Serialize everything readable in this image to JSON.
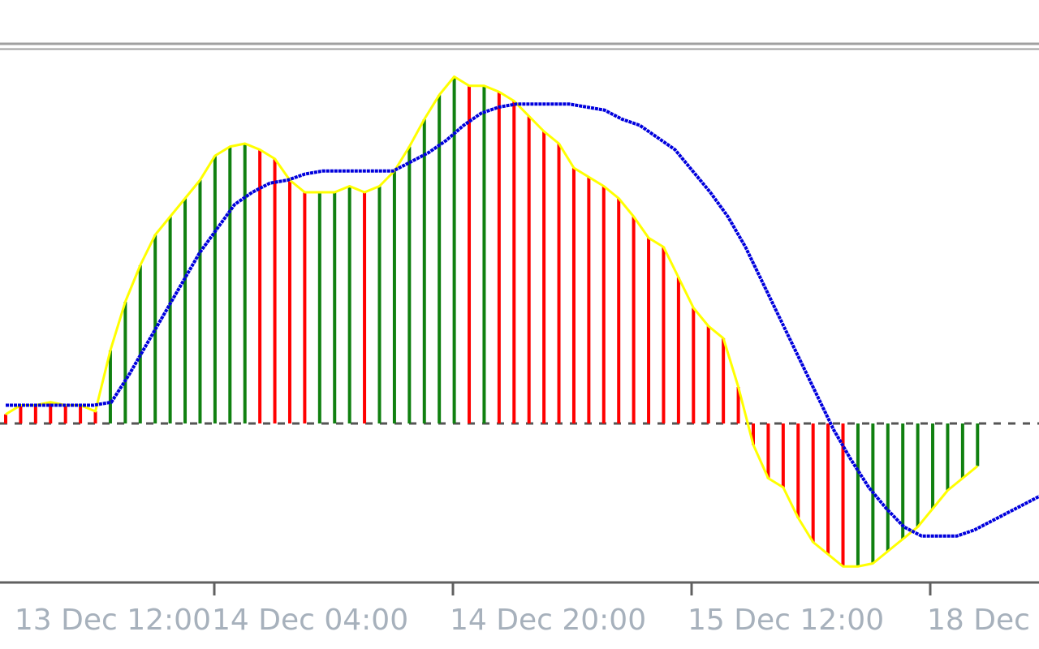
{
  "chart_data": {
    "type": "bar",
    "colors": {
      "up_bar": "#108010",
      "down_bar": "#ff0000",
      "envelope_line": "#ffff00",
      "signal_line": "#0000dd",
      "zero_line": "#555555",
      "frame": "#a0a0a0",
      "tick_label": "#a7b1bc"
    },
    "ylim": [
      -5.8,
      12.8
    ],
    "x_tick_labels": [
      "13 Dec 12:00",
      "14 Dec 04:00",
      "14 Dec 20:00",
      "15 Dec 12:00",
      "18 Dec"
    ],
    "x_tick_bar_index": [
      6,
      14,
      22,
      30,
      38
    ],
    "bar_values": [
      0.3,
      0.6,
      0.6,
      0.7,
      0.6,
      0.6,
      0.4,
      2.4,
      4.0,
      5.2,
      6.2,
      6.8,
      7.4,
      8.0,
      8.8,
      9.1,
      9.2,
      9.0,
      8.7,
      8.0,
      7.6,
      7.6,
      7.6,
      7.8,
      7.6,
      7.8,
      8.3,
      9.1,
      10.0,
      10.8,
      11.4,
      11.1,
      11.1,
      10.9,
      10.6,
      10.1,
      9.6,
      9.2,
      8.4,
      8.1,
      7.8,
      7.4,
      6.8,
      6.1,
      5.8,
      4.8,
      3.8,
      3.2,
      2.8,
      1.2,
      -0.7,
      -1.8,
      -2.1,
      -3.1,
      -3.9,
      -4.3,
      -4.7,
      -4.7,
      -4.6,
      -4.2,
      -3.8,
      -3.4,
      -2.8,
      -2.2,
      -1.8,
      -1.4
    ],
    "signal_values": [
      0.6,
      0.6,
      0.6,
      0.6,
      0.6,
      0.6,
      0.7,
      1.6,
      2.6,
      3.6,
      4.6,
      5.6,
      6.4,
      7.2,
      7.6,
      7.9,
      8.0,
      8.2,
      8.3,
      8.3,
      8.3,
      8.3,
      8.3,
      8.6,
      8.9,
      9.3,
      9.8,
      10.2,
      10.4,
      10.5,
      10.5,
      10.5,
      10.5,
      10.4,
      10.3,
      10.0,
      9.8,
      9.4,
      9.0,
      8.3,
      7.6,
      6.8,
      5.8,
      4.6,
      3.4,
      2.2,
      1.0,
      -0.2,
      -1.2,
      -2.1,
      -2.8,
      -3.4,
      -3.7,
      -3.7,
      -3.7,
      -3.5,
      -3.2,
      -2.9,
      -2.6,
      -2.3
    ],
    "signal_x_start": -12
  }
}
